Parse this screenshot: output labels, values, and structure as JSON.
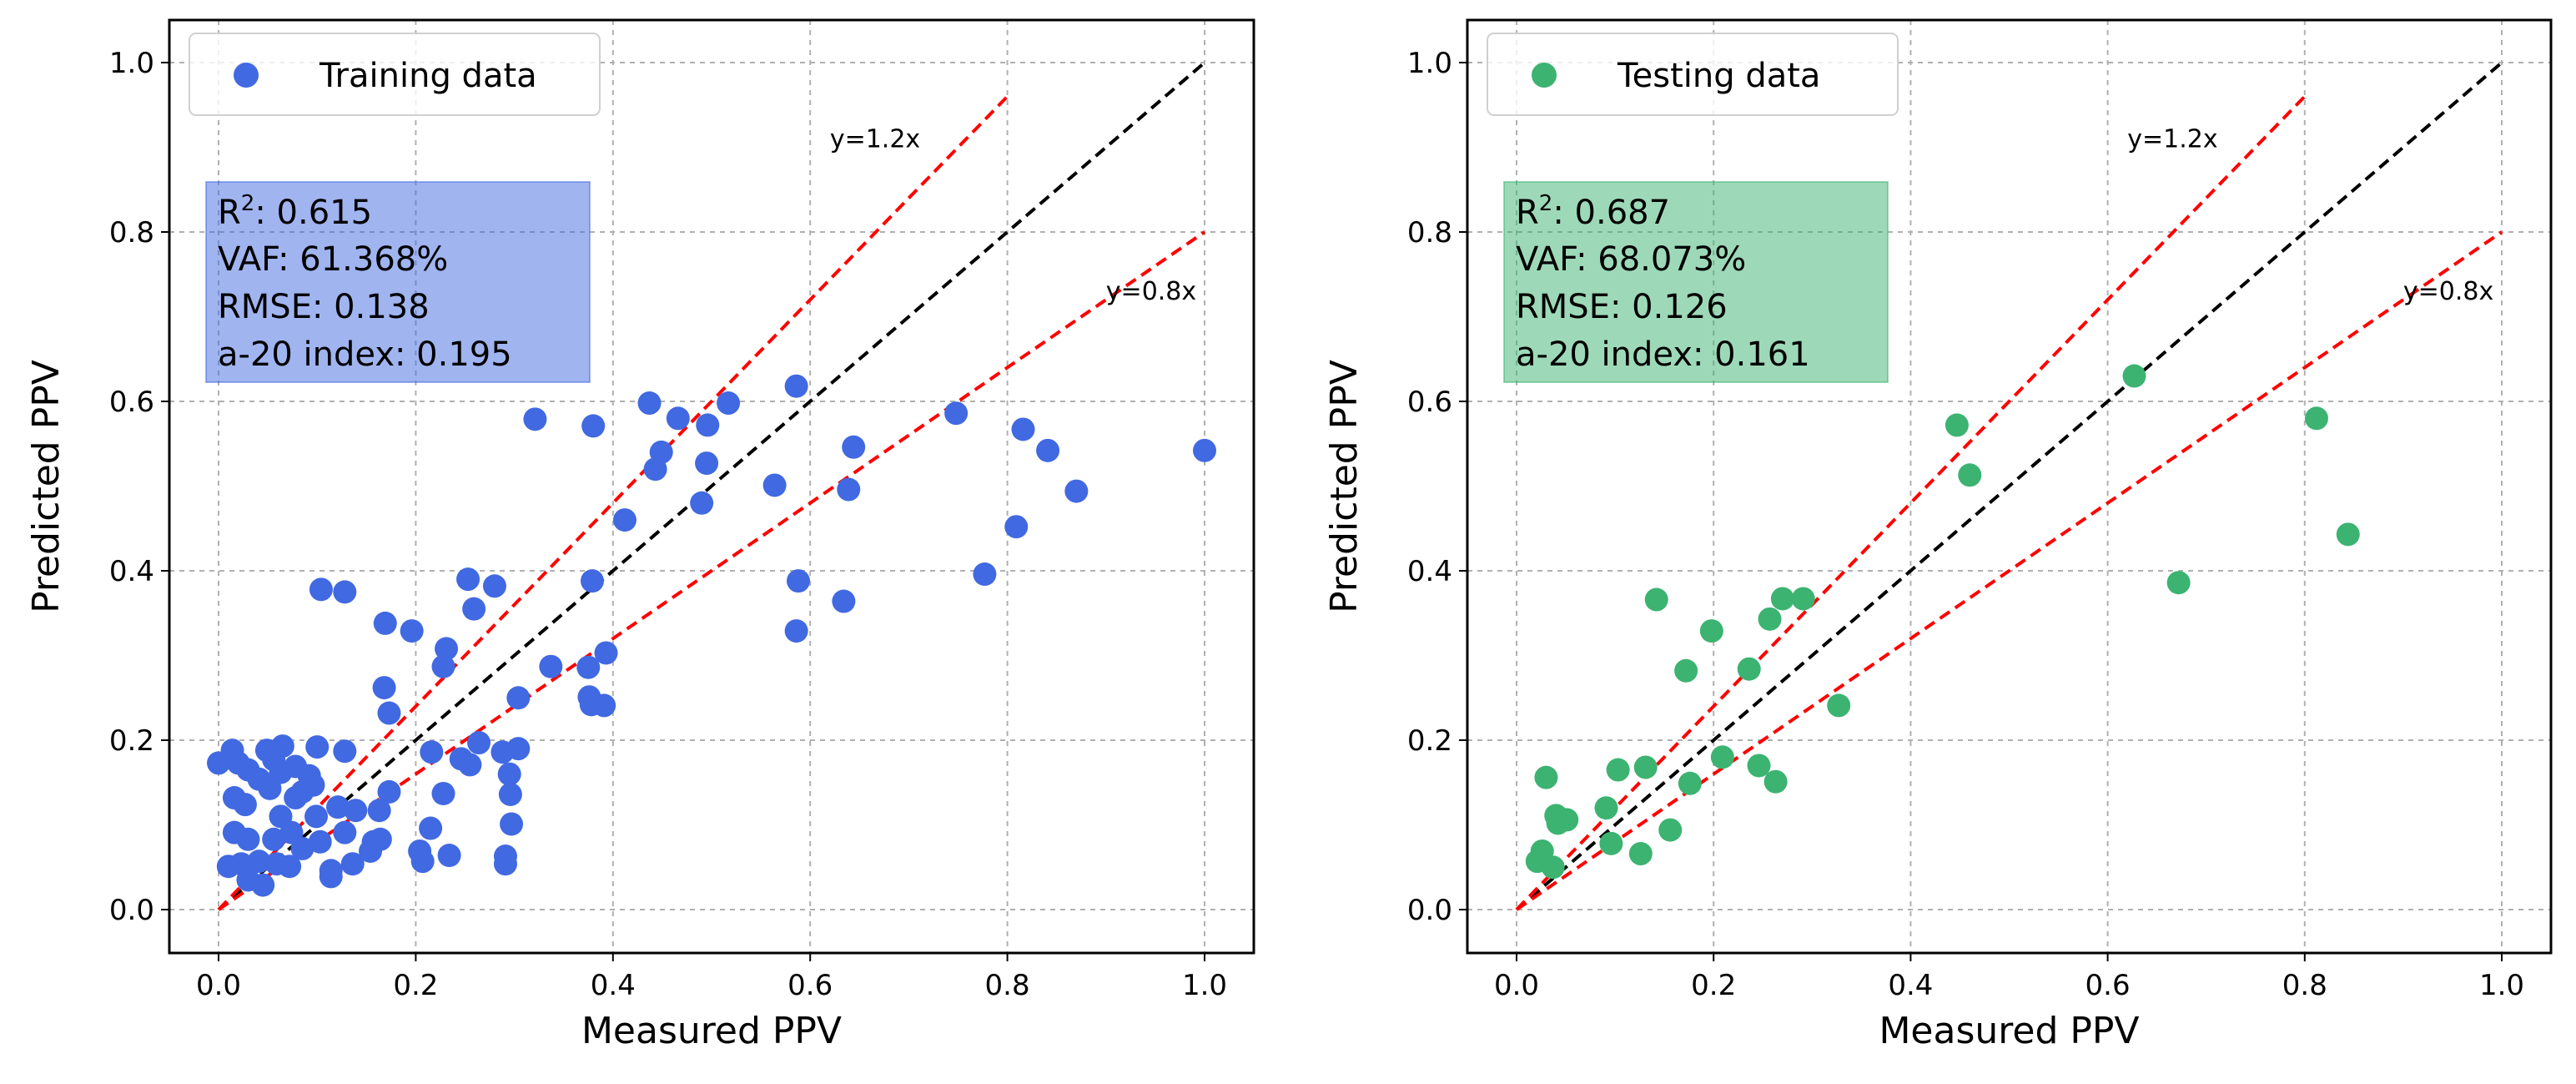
{
  "chart_data": [
    {
      "type": "scatter",
      "xlabel": "Measured PPV",
      "ylabel": "Predicted PPV",
      "xlim": [
        -0.05,
        1.05
      ],
      "ylim": [
        -0.05,
        1.05
      ],
      "xticks": [
        "0.0",
        "0.2",
        "0.4",
        "0.6",
        "0.8",
        "1.0"
      ],
      "yticks": [
        "0.0",
        "0.2",
        "0.4",
        "0.6",
        "0.8",
        "1.0"
      ],
      "grid": true,
      "legend": {
        "label": "Training data",
        "placement": "top-left"
      },
      "color": "#4169e1",
      "box_color": "#4169e1",
      "stats": {
        "r2_label": "R",
        "r2_sup": "2",
        "r2": ": 0.615",
        "vaf": "VAF: 61.368%",
        "rmse": "RMSE: 0.138",
        "a20": "a-20 index: 0.195"
      },
      "reference_lines": [
        {
          "label": "",
          "slope": 1.0,
          "x_end": 1.0,
          "color": "#000000"
        },
        {
          "label": "y=1.2x",
          "slope": 1.2,
          "x_end": 0.8,
          "color": "#ff0000"
        },
        {
          "label": "y=0.8x",
          "slope": 0.8,
          "x_end": 1.0,
          "color": "#ff0000"
        }
      ],
      "points": [
        [
          0.321,
          0.579
        ],
        [
          0.38,
          0.571
        ],
        [
          0.437,
          0.598
        ],
        [
          0.466,
          0.58
        ],
        [
          0.496,
          0.572
        ],
        [
          0.517,
          0.598
        ],
        [
          0.586,
          0.618
        ],
        [
          0.449,
          0.54
        ],
        [
          0.443,
          0.52
        ],
        [
          0.495,
          0.527
        ],
        [
          0.49,
          0.48
        ],
        [
          0.412,
          0.46
        ],
        [
          0.564,
          0.501
        ],
        [
          0.644,
          0.546
        ],
        [
          0.639,
          0.496
        ],
        [
          0.748,
          0.586
        ],
        [
          0.816,
          0.567
        ],
        [
          0.841,
          0.542
        ],
        [
          1.0,
          0.542
        ],
        [
          0.87,
          0.494
        ],
        [
          0.809,
          0.452
        ],
        [
          0.777,
          0.396
        ],
        [
          0.588,
          0.388
        ],
        [
          0.634,
          0.364
        ],
        [
          0.586,
          0.329
        ],
        [
          0.104,
          0.378
        ],
        [
          0.128,
          0.375
        ],
        [
          0.253,
          0.39
        ],
        [
          0.28,
          0.382
        ],
        [
          0.259,
          0.355
        ],
        [
          0.379,
          0.388
        ],
        [
          0.169,
          0.338
        ],
        [
          0.196,
          0.329
        ],
        [
          0.231,
          0.308
        ],
        [
          0.228,
          0.287
        ],
        [
          0.337,
          0.287
        ],
        [
          0.375,
          0.286
        ],
        [
          0.393,
          0.303
        ],
        [
          0.168,
          0.262
        ],
        [
          0.173,
          0.232
        ],
        [
          0.304,
          0.25
        ],
        [
          0.376,
          0.251
        ],
        [
          0.378,
          0.242
        ],
        [
          0.391,
          0.241
        ],
        [
          0.0,
          0.173
        ],
        [
          0.014,
          0.188
        ],
        [
          0.02,
          0.173
        ],
        [
          0.03,
          0.165
        ],
        [
          0.049,
          0.188
        ],
        [
          0.065,
          0.193
        ],
        [
          0.056,
          0.177
        ],
        [
          0.078,
          0.169
        ],
        [
          0.092,
          0.158
        ],
        [
          0.1,
          0.192
        ],
        [
          0.128,
          0.187
        ],
        [
          0.096,
          0.147
        ],
        [
          0.016,
          0.132
        ],
        [
          0.027,
          0.124
        ],
        [
          0.052,
          0.143
        ],
        [
          0.078,
          0.132
        ],
        [
          0.063,
          0.11
        ],
        [
          0.016,
          0.091
        ],
        [
          0.03,
          0.083
        ],
        [
          0.056,
          0.083
        ],
        [
          0.01,
          0.051
        ],
        [
          0.03,
          0.035
        ],
        [
          0.045,
          0.029
        ],
        [
          0.072,
          0.051
        ],
        [
          0.085,
          0.072
        ],
        [
          0.114,
          0.046
        ],
        [
          0.114,
          0.039
        ],
        [
          0.136,
          0.054
        ],
        [
          0.128,
          0.091
        ],
        [
          0.099,
          0.11
        ],
        [
          0.121,
          0.121
        ],
        [
          0.139,
          0.117
        ],
        [
          0.163,
          0.117
        ],
        [
          0.173,
          0.139
        ],
        [
          0.157,
          0.08
        ],
        [
          0.154,
          0.069
        ],
        [
          0.164,
          0.083
        ],
        [
          0.204,
          0.069
        ],
        [
          0.207,
          0.057
        ],
        [
          0.215,
          0.096
        ],
        [
          0.234,
          0.064
        ],
        [
          0.228,
          0.137
        ],
        [
          0.216,
          0.186
        ],
        [
          0.246,
          0.178
        ],
        [
          0.255,
          0.171
        ],
        [
          0.264,
          0.197
        ],
        [
          0.288,
          0.186
        ],
        [
          0.304,
          0.19
        ],
        [
          0.295,
          0.16
        ],
        [
          0.296,
          0.136
        ],
        [
          0.297,
          0.101
        ],
        [
          0.291,
          0.063
        ],
        [
          0.291,
          0.054
        ],
        [
          0.041,
          0.154
        ],
        [
          0.063,
          0.162
        ],
        [
          0.085,
          0.139
        ],
        [
          0.074,
          0.091
        ],
        [
          0.103,
          0.08
        ],
        [
          0.041,
          0.057
        ],
        [
          0.023,
          0.054
        ],
        [
          0.059,
          0.054
        ]
      ]
    },
    {
      "type": "scatter",
      "xlabel": "Measured PPV",
      "ylabel": "Predicted PPV",
      "xlim": [
        -0.05,
        1.05
      ],
      "ylim": [
        -0.05,
        1.05
      ],
      "xticks": [
        "0.0",
        "0.2",
        "0.4",
        "0.6",
        "0.8",
        "1.0"
      ],
      "yticks": [
        "0.0",
        "0.2",
        "0.4",
        "0.6",
        "0.8",
        "1.0"
      ],
      "grid": true,
      "legend": {
        "label": "Testing data",
        "placement": "top-left"
      },
      "color": "#3cb371",
      "box_color": "#3cb371",
      "stats": {
        "r2_label": "R",
        "r2_sup": "2",
        "r2": ": 0.687",
        "vaf": "VAF: 68.073%",
        "rmse": "RMSE: 0.126",
        "a20": "a-20 index: 0.161"
      },
      "reference_lines": [
        {
          "label": "",
          "slope": 1.0,
          "x_end": 1.0,
          "color": "#000000"
        },
        {
          "label": "y=1.2x",
          "slope": 1.2,
          "x_end": 0.8,
          "color": "#ff0000"
        },
        {
          "label": "y=0.8x",
          "slope": 0.8,
          "x_end": 1.0,
          "color": "#ff0000"
        }
      ],
      "points": [
        [
          0.627,
          0.63
        ],
        [
          0.447,
          0.572
        ],
        [
          0.46,
          0.513
        ],
        [
          0.812,
          0.58
        ],
        [
          0.844,
          0.443
        ],
        [
          0.672,
          0.386
        ],
        [
          0.142,
          0.366
        ],
        [
          0.27,
          0.367
        ],
        [
          0.291,
          0.367
        ],
        [
          0.257,
          0.343
        ],
        [
          0.198,
          0.329
        ],
        [
          0.172,
          0.282
        ],
        [
          0.236,
          0.284
        ],
        [
          0.327,
          0.241
        ],
        [
          0.03,
          0.156
        ],
        [
          0.103,
          0.165
        ],
        [
          0.131,
          0.168
        ],
        [
          0.209,
          0.18
        ],
        [
          0.246,
          0.17
        ],
        [
          0.263,
          0.151
        ],
        [
          0.176,
          0.149
        ],
        [
          0.091,
          0.12
        ],
        [
          0.04,
          0.111
        ],
        [
          0.051,
          0.106
        ],
        [
          0.042,
          0.102
        ],
        [
          0.156,
          0.094
        ],
        [
          0.096,
          0.078
        ],
        [
          0.126,
          0.066
        ],
        [
          0.026,
          0.069
        ],
        [
          0.021,
          0.057
        ],
        [
          0.037,
          0.05
        ]
      ]
    }
  ]
}
